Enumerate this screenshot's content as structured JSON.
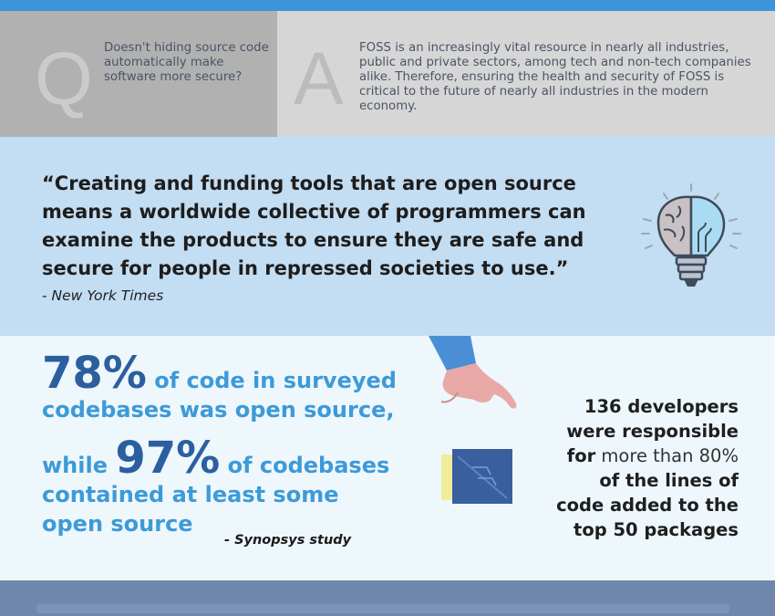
{
  "qa": {
    "q_letter": "Q",
    "question": "Doesn't hiding source code automatically make software more secure?",
    "a_letter": "A",
    "answer": "FOSS is an increasingly vital resource in nearly all industries, public and private sectors, among tech and non-tech companies alike. Therefore, ensuring the health and security of FOSS is critical to the future of nearly all industries in the modern economy."
  },
  "quote": {
    "text": "“Creating and funding tools that are open source means a worldwide collective of programmers can examine the products to ensure they are safe and secure for people in repressed societies to use.”",
    "source": "- New York Times",
    "icon": "brain-lightbulb-icon"
  },
  "stats": {
    "stat1_pct": "78%",
    "stat1_rest1": " of code in surveyed",
    "stat1_rest2": "codebases was open source,",
    "stat2_pre": "while ",
    "stat2_pct": "97%",
    "stat2_rest1": " of codebases",
    "stat2_rest2": "contained at least some",
    "stat2_rest3": "open source",
    "study": "- Synopsys study",
    "right_l1": "136 developers",
    "right_l2": "were responsible",
    "right_l3a": "for",
    "right_l3b": " more than 80%",
    "right_l4": "of the lines of",
    "right_l5": "code added to the",
    "right_l6": "top 50 packages"
  },
  "colors": {
    "accent_blue": "#3d9ad8",
    "dark_blue": "#2b5f9e",
    "quote_bg": "#c3ddf2",
    "footer": "#6f86ad"
  }
}
